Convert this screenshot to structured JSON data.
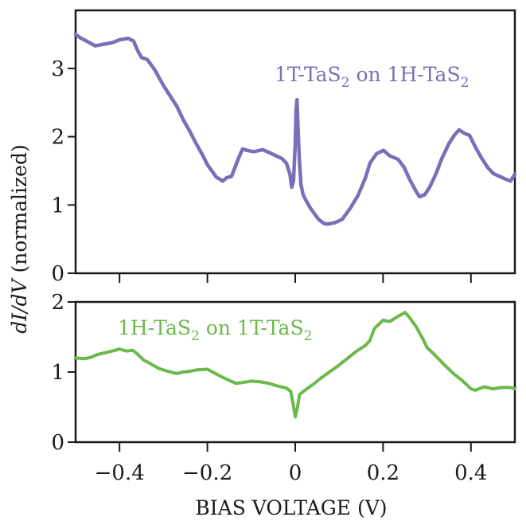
{
  "chart_data": [
    {
      "type": "line",
      "panel": "top",
      "title": "",
      "xlabel": "BIAS VOLTAGE (V)",
      "ylabel_italic": "dI/dV",
      "ylabel_rest": " (normalized)",
      "xlim": [
        -0.5,
        0.5
      ],
      "ylim": [
        0,
        3.85
      ],
      "yticks": [
        0,
        1,
        2,
        3
      ],
      "ytick_labels": [
        "0",
        "1",
        "2",
        "3"
      ],
      "xticks": [
        -0.4,
        -0.2,
        0,
        0.2,
        0.4
      ],
      "grid": false,
      "color": "#7b6fb8",
      "annotation": {
        "prefix": "1T-TaS",
        "sub1": "2",
        "mid": " on 1H-TaS",
        "sub2": "2"
      },
      "series": [
        {
          "name": "1T-TaS2 on 1H-TaS2",
          "x": [
            -0.5,
            -0.49,
            -0.475,
            -0.455,
            -0.44,
            -0.43,
            -0.415,
            -0.4,
            -0.38,
            -0.368,
            -0.358,
            -0.35,
            -0.337,
            -0.32,
            -0.3,
            -0.288,
            -0.27,
            -0.255,
            -0.24,
            -0.228,
            -0.21,
            -0.2,
            -0.18,
            -0.165,
            -0.156,
            -0.145,
            -0.13,
            -0.12,
            -0.11,
            -0.095,
            -0.074,
            -0.06,
            -0.047,
            -0.03,
            -0.02,
            -0.012,
            -0.008,
            -0.004,
            0.0,
            0.002,
            0.004,
            0.006,
            0.009,
            0.013,
            0.018,
            0.025,
            0.035,
            0.053,
            0.065,
            0.074,
            0.09,
            0.107,
            0.125,
            0.143,
            0.16,
            0.17,
            0.185,
            0.201,
            0.215,
            0.234,
            0.248,
            0.26,
            0.275,
            0.283,
            0.295,
            0.306,
            0.32,
            0.333,
            0.35,
            0.362,
            0.373,
            0.385,
            0.397,
            0.41,
            0.424,
            0.438,
            0.451,
            0.465,
            0.478,
            0.49,
            0.5
          ],
          "y": [
            3.5,
            3.45,
            3.4,
            3.33,
            3.35,
            3.36,
            3.38,
            3.42,
            3.44,
            3.4,
            3.25,
            3.16,
            3.13,
            2.98,
            2.75,
            2.63,
            2.45,
            2.25,
            2.08,
            1.93,
            1.72,
            1.59,
            1.41,
            1.35,
            1.4,
            1.42,
            1.67,
            1.82,
            1.8,
            1.78,
            1.81,
            1.77,
            1.73,
            1.68,
            1.61,
            1.45,
            1.26,
            1.35,
            1.9,
            2.4,
            2.54,
            2.2,
            1.7,
            1.3,
            1.15,
            1.06,
            0.95,
            0.79,
            0.73,
            0.72,
            0.74,
            0.79,
            0.95,
            1.14,
            1.4,
            1.61,
            1.75,
            1.8,
            1.72,
            1.67,
            1.55,
            1.38,
            1.2,
            1.12,
            1.15,
            1.26,
            1.45,
            1.67,
            1.9,
            2.02,
            2.1,
            2.05,
            2.02,
            1.85,
            1.69,
            1.55,
            1.46,
            1.42,
            1.38,
            1.35,
            1.45
          ]
        }
      ]
    },
    {
      "type": "line",
      "panel": "bottom",
      "title": "",
      "xlabel": "BIAS VOLTAGE (V)",
      "xlim": [
        -0.5,
        0.5
      ],
      "ylim": [
        0,
        2
      ],
      "yticks": [
        0,
        1,
        2
      ],
      "ytick_labels": [
        "0",
        "1",
        "2"
      ],
      "xticks": [
        -0.4,
        -0.2,
        0,
        0.2,
        0.4
      ],
      "xtick_labels": [
        "−0.4",
        "−0.2",
        "0",
        "0.2",
        "0.4"
      ],
      "grid": false,
      "color": "#6ab94a",
      "annotation": {
        "prefix": "1H-TaS",
        "sub1": "2",
        "mid": " on 1T-TaS",
        "sub2": "2"
      },
      "series": [
        {
          "name": "1H-TaS2 on 1T-TaS2",
          "x": [
            -0.5,
            -0.48,
            -0.465,
            -0.45,
            -0.43,
            -0.41,
            -0.4,
            -0.385,
            -0.37,
            -0.36,
            -0.345,
            -0.33,
            -0.31,
            -0.29,
            -0.27,
            -0.255,
            -0.24,
            -0.225,
            -0.2,
            -0.185,
            -0.17,
            -0.15,
            -0.135,
            -0.12,
            -0.1,
            -0.08,
            -0.06,
            -0.04,
            -0.02,
            -0.01,
            -0.005,
            0.0,
            0.005,
            0.01,
            0.02,
            0.04,
            0.06,
            0.08,
            0.1,
            0.12,
            0.14,
            0.16,
            0.17,
            0.18,
            0.2,
            0.215,
            0.23,
            0.25,
            0.26,
            0.275,
            0.29,
            0.3,
            0.32,
            0.34,
            0.36,
            0.38,
            0.4,
            0.41,
            0.43,
            0.45,
            0.47,
            0.49,
            0.5
          ],
          "y": [
            1.2,
            1.19,
            1.21,
            1.25,
            1.28,
            1.31,
            1.33,
            1.3,
            1.31,
            1.26,
            1.17,
            1.12,
            1.05,
            1.01,
            0.98,
            1.0,
            1.01,
            1.03,
            1.04,
            0.99,
            0.94,
            0.88,
            0.84,
            0.85,
            0.87,
            0.86,
            0.84,
            0.8,
            0.77,
            0.72,
            0.55,
            0.36,
            0.5,
            0.68,
            0.73,
            0.82,
            0.92,
            1.01,
            1.1,
            1.2,
            1.3,
            1.38,
            1.45,
            1.62,
            1.74,
            1.72,
            1.78,
            1.85,
            1.78,
            1.65,
            1.48,
            1.35,
            1.23,
            1.1,
            0.98,
            0.88,
            0.76,
            0.74,
            0.79,
            0.76,
            0.78,
            0.78,
            0.76
          ]
        }
      ]
    }
  ]
}
